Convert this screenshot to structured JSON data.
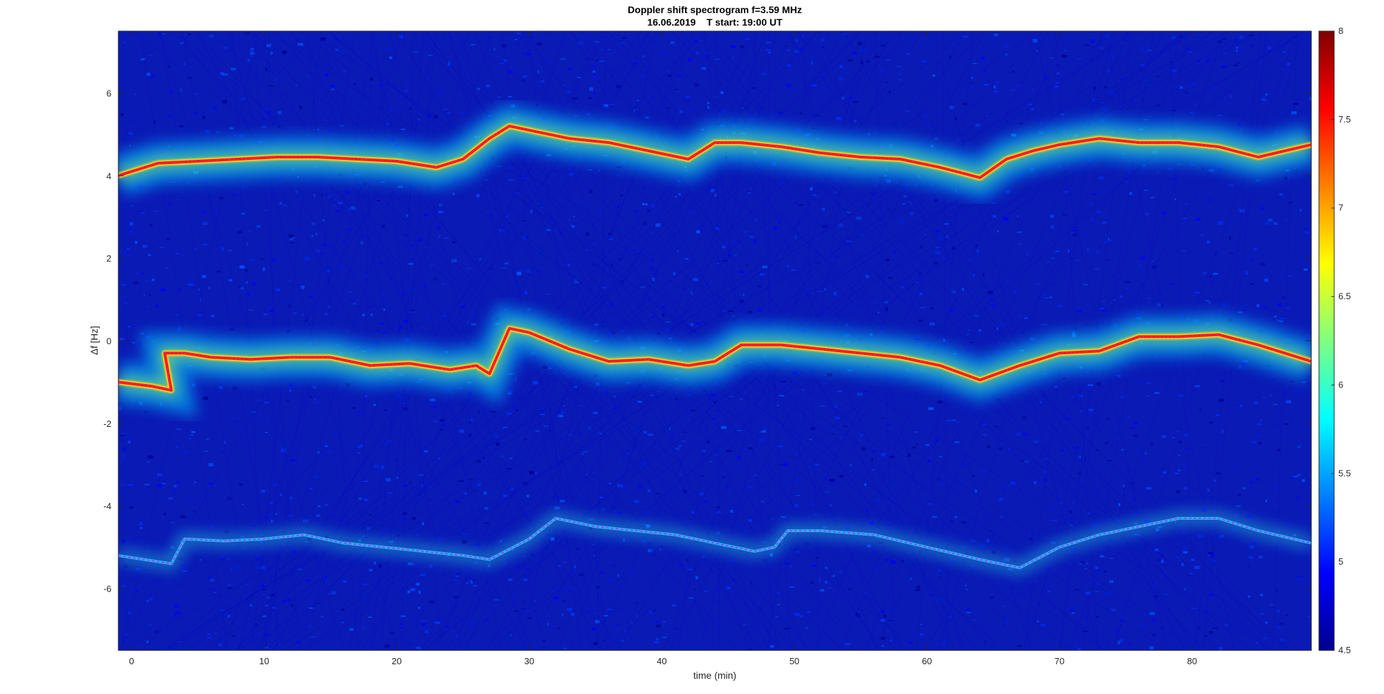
{
  "chart_data": {
    "type": "heatmap",
    "title": "Doppler shift spectrogram f=3.59 MHz",
    "subtitle": "16.06.2019    T start: 19:00 UT",
    "xlabel": "time (min)",
    "ylabel": "Δf [Hz]",
    "xlim": [
      -1,
      89
    ],
    "ylim": [
      -7.5,
      7.5
    ],
    "xticks": [
      0,
      10,
      20,
      30,
      40,
      50,
      60,
      70,
      80
    ],
    "yticks": [
      -6,
      -4,
      -2,
      0,
      2,
      4,
      6
    ],
    "colorbar": {
      "colormap": "jet",
      "clim": [
        4.5,
        8
      ],
      "ticks": [
        4.5,
        5,
        5.5,
        6,
        6.5,
        7,
        7.5,
        8
      ]
    },
    "series": [
      {
        "x": [
          -1,
          2,
          5,
          8,
          11,
          14,
          17,
          20,
          23,
          25,
          27,
          28.5,
          30,
          33,
          36,
          39,
          42,
          44,
          46,
          49,
          52,
          55,
          58,
          61,
          64,
          66,
          68,
          70,
          73,
          76,
          79,
          82,
          85,
          89
        ],
        "y": [
          4.0,
          4.3,
          4.35,
          4.4,
          4.45,
          4.45,
          4.4,
          4.35,
          4.2,
          4.4,
          4.9,
          5.2,
          5.1,
          4.9,
          4.8,
          4.6,
          4.4,
          4.8,
          4.8,
          4.7,
          4.55,
          4.45,
          4.4,
          4.2,
          3.95,
          4.4,
          4.6,
          4.75,
          4.9,
          4.8,
          4.8,
          4.7,
          4.45,
          4.75
        ]
      },
      {
        "x": [
          -1,
          1.5,
          3,
          2.5,
          4,
          6,
          9,
          12,
          15,
          18,
          21,
          24,
          26,
          27,
          28.5,
          30,
          33,
          36,
          39,
          42,
          44,
          46,
          49,
          52,
          55,
          58,
          61,
          64,
          67,
          70,
          73,
          76,
          79,
          82,
          85,
          89
        ],
        "y": [
          -1.0,
          -1.1,
          -1.2,
          -0.3,
          -0.3,
          -0.4,
          -0.45,
          -0.4,
          -0.4,
          -0.6,
          -0.55,
          -0.7,
          -0.6,
          -0.8,
          0.3,
          0.2,
          -0.2,
          -0.5,
          -0.45,
          -0.6,
          -0.5,
          -0.1,
          -0.1,
          -0.2,
          -0.3,
          -0.4,
          -0.6,
          -0.95,
          -0.6,
          -0.3,
          -0.25,
          0.1,
          0.1,
          0.15,
          -0.1,
          -0.5
        ]
      },
      {
        "x": [
          -1,
          3,
          4,
          7,
          10,
          13,
          16,
          19,
          22,
          25,
          27,
          30,
          32,
          35,
          38,
          41,
          44,
          47,
          48.5,
          49.5,
          52,
          56,
          60,
          64,
          67,
          70,
          73,
          76,
          79,
          82,
          85,
          89
        ],
        "y": [
          -5.2,
          -5.4,
          -4.8,
          -4.85,
          -4.8,
          -4.7,
          -4.9,
          -5.0,
          -5.1,
          -5.2,
          -5.3,
          -4.8,
          -4.3,
          -4.5,
          -4.6,
          -4.7,
          -4.9,
          -5.1,
          -5.0,
          -4.6,
          -4.6,
          -4.7,
          -5.0,
          -5.3,
          -5.5,
          -5.0,
          -4.7,
          -4.5,
          -4.3,
          -4.3,
          -4.6,
          -4.9
        ]
      }
    ]
  }
}
